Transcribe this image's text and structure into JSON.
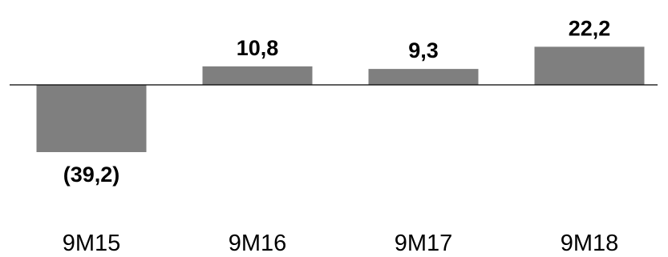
{
  "chart_data": {
    "type": "bar",
    "categories": [
      "9M15",
      "9M16",
      "9M17",
      "9M18"
    ],
    "values": [
      -39.2,
      10.8,
      9.3,
      22.2
    ],
    "data_labels": [
      "(39,2)",
      "10,8",
      "9,3",
      "22,2"
    ],
    "ylim": [
      -40,
      23
    ],
    "grid": false,
    "legend": "none",
    "colors": {
      "bar": "#7f7f7f",
      "baseline": "#000000",
      "text": "#000000"
    }
  }
}
